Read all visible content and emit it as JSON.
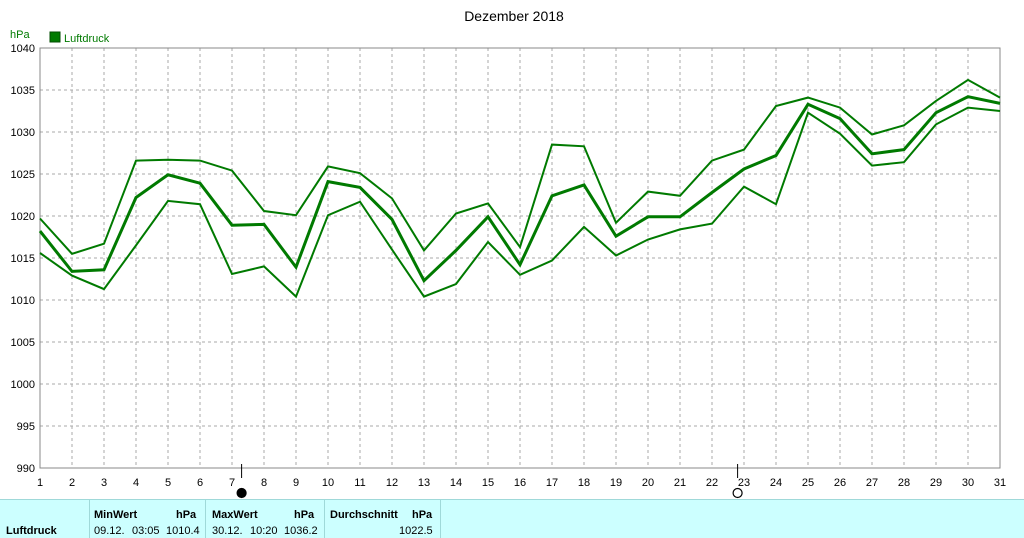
{
  "chart_data": {
    "type": "line",
    "title": "Dezember 2018",
    "ylabel": "hPa",
    "ylim": [
      990,
      1040
    ],
    "y_ticks": [
      990,
      995,
      1000,
      1005,
      1010,
      1015,
      1020,
      1025,
      1030,
      1035,
      1040
    ],
    "x": [
      1,
      2,
      3,
      4,
      5,
      6,
      7,
      8,
      9,
      10,
      11,
      12,
      13,
      14,
      15,
      16,
      17,
      18,
      19,
      20,
      21,
      22,
      23,
      24,
      25,
      26,
      27,
      28,
      29,
      30,
      31
    ],
    "grid": true,
    "legend": "top-left",
    "color": "#007a00",
    "series": [
      {
        "name": "Luftdruck",
        "role": "mean",
        "values": [
          1018.2,
          1013.4,
          1013.6,
          1022.2,
          1024.9,
          1023.9,
          1018.9,
          1019.0,
          1013.9,
          1024.1,
          1023.4,
          1019.6,
          1012.3,
          1015.9,
          1019.9,
          1014.2,
          1022.4,
          1023.7,
          1017.6,
          1019.9,
          1019.9,
          1022.8,
          1025.6,
          1027.2,
          1033.3,
          1031.6,
          1027.4,
          1027.9,
          1032.3,
          1034.2,
          1033.4
        ]
      },
      {
        "role": "max",
        "values": [
          1019.7,
          1015.5,
          1016.7,
          1026.6,
          1026.7,
          1026.6,
          1025.4,
          1020.6,
          1020.1,
          1025.9,
          1025.1,
          1022.1,
          1015.9,
          1020.3,
          1021.5,
          1016.3,
          1028.5,
          1028.3,
          1019.2,
          1022.9,
          1022.4,
          1026.6,
          1027.9,
          1033.1,
          1034.1,
          1032.9,
          1029.7,
          1030.8,
          1033.7,
          1036.2,
          1034.1
        ]
      },
      {
        "role": "min",
        "values": [
          1015.6,
          1012.9,
          1011.3,
          1016.5,
          1021.8,
          1021.4,
          1013.1,
          1014.0,
          1010.4,
          1020.1,
          1021.7,
          1016.0,
          1010.4,
          1011.9,
          1016.9,
          1013.0,
          1014.7,
          1018.7,
          1015.3,
          1017.2,
          1018.4,
          1019.1,
          1023.5,
          1021.4,
          1032.3,
          1029.8,
          1026.0,
          1026.4,
          1030.9,
          1032.9,
          1032.5
        ]
      }
    ],
    "markers": [
      {
        "symbol": "full-moon-icon",
        "x": 7.3
      },
      {
        "symbol": "new-moon-icon",
        "x": 22.8
      }
    ]
  },
  "stats": {
    "series_label": "Luftdruck",
    "min": {
      "label": "MinWert",
      "unit": "hPa",
      "date": "09.12.",
      "time": "03:05",
      "value": "1010.4"
    },
    "max": {
      "label": "MaxWert",
      "unit": "hPa",
      "date": "30.12.",
      "time": "10:20",
      "value": "1036.2"
    },
    "avg": {
      "label": "Durchschnitt",
      "unit": "hPa",
      "value": "1022.5"
    }
  }
}
